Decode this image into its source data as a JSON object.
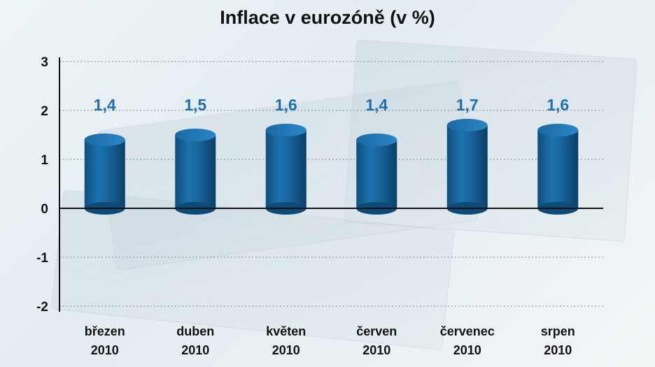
{
  "chart_data": {
    "type": "bar",
    "title": "Inflace v eurozóně (v %)",
    "categories": [
      [
        "březen",
        "2010"
      ],
      [
        "duben",
        "2010"
      ],
      [
        "květen",
        "2010"
      ],
      [
        "červen",
        "2010"
      ],
      [
        "červenec",
        "2010"
      ],
      [
        "srpen",
        "2010"
      ]
    ],
    "values": [
      1.4,
      1.5,
      1.6,
      1.4,
      1.7,
      1.6
    ],
    "data_labels": [
      "1,4",
      "1,5",
      "1,6",
      "1,4",
      "1,7",
      "1,6"
    ],
    "yticks": [
      3,
      2,
      1,
      0,
      -1,
      -2
    ],
    "ylim": [
      -2,
      3
    ],
    "grid": true,
    "bar_color": "#17639a",
    "label_color": "#1f6fb3"
  }
}
